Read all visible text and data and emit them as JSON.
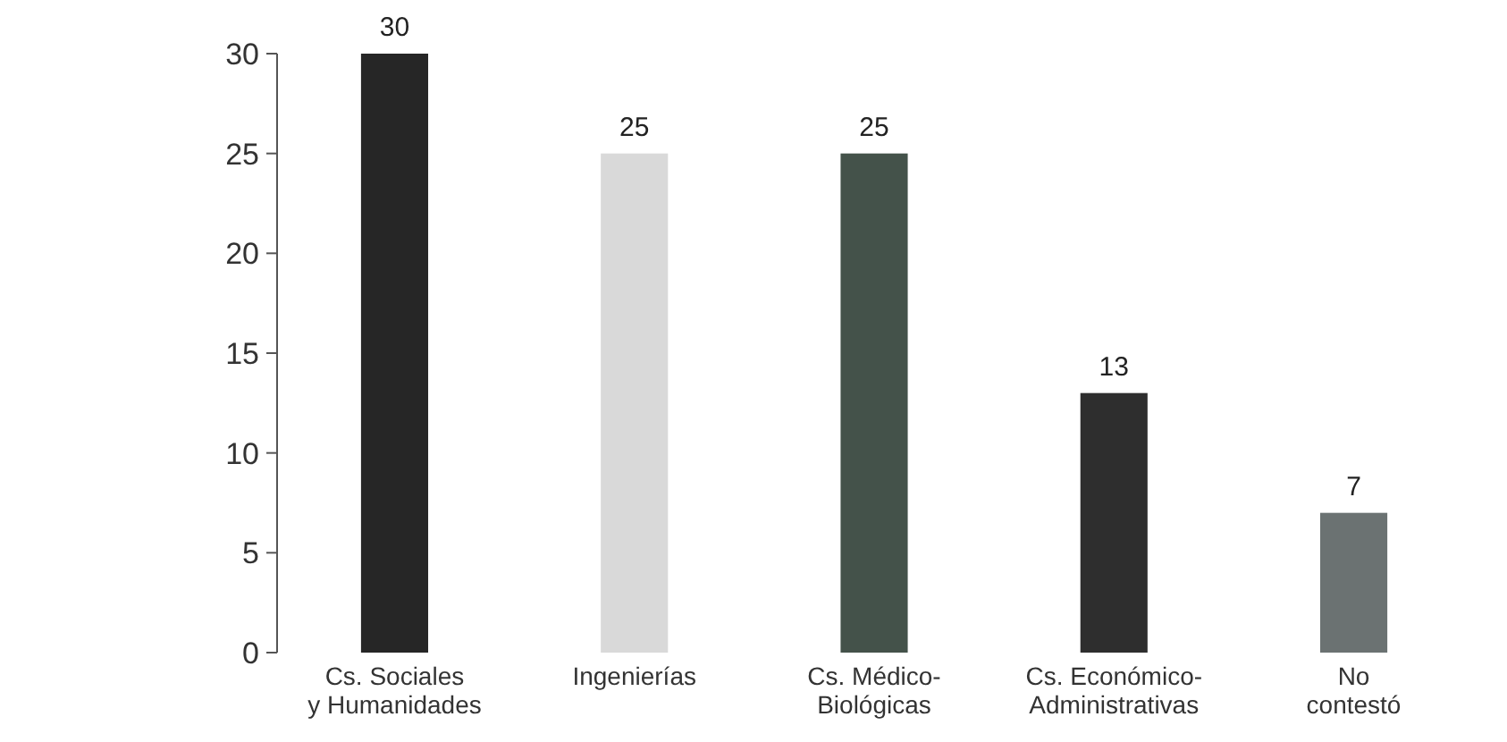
{
  "chart_data": {
    "type": "bar",
    "categories": [
      "Cs. Sociales\ny Humanidades",
      "Ingenierías",
      "Cs. Médico-\nBiológicas",
      "Cs. Económico-\nAdministrativas",
      "No\ncontestó"
    ],
    "values": [
      30,
      25,
      25,
      13,
      7
    ],
    "colors": [
      "#262626",
      "#d9d9d9",
      "#44524a",
      "#2e2e2e",
      "#6b7272"
    ],
    "ylim": [
      0,
      30
    ],
    "yticks": [
      0,
      5,
      10,
      15,
      20,
      25,
      30
    ],
    "data_labels": true,
    "grid": false
  }
}
